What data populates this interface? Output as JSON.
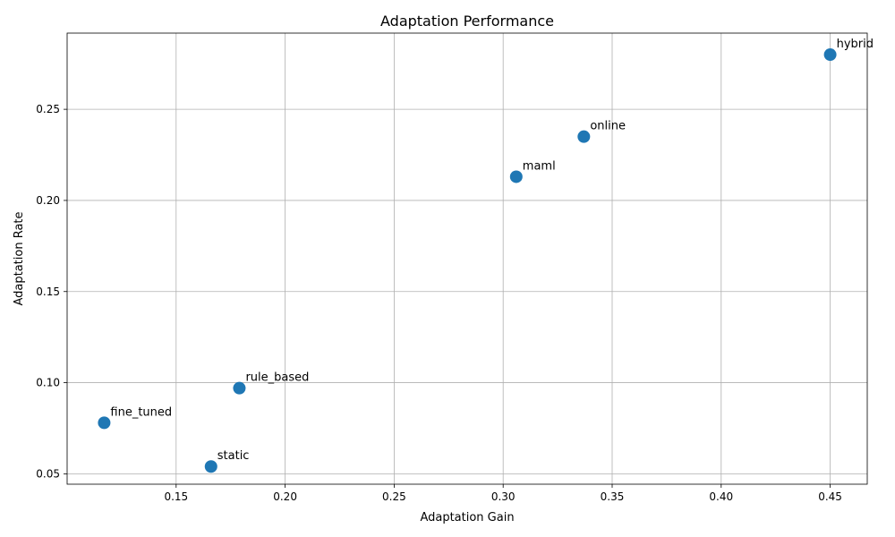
{
  "chart_data": {
    "type": "scatter",
    "title": "Adaptation Performance",
    "xlabel": "Adaptation Gain",
    "ylabel": "Adaptation Rate",
    "xlim": [
      0.1,
      0.467
    ],
    "ylim": [
      0.0443,
      0.2918
    ],
    "xticks": [
      "0.15",
      "0.20",
      "0.25",
      "0.30",
      "0.35",
      "0.40",
      "0.45"
    ],
    "yticks": [
      "0.05",
      "0.10",
      "0.15",
      "0.20",
      "0.25"
    ],
    "grid": true,
    "marker_color": "#1f77b4",
    "points": [
      {
        "label": "hybrid",
        "x": 0.45,
        "y": 0.28
      },
      {
        "label": "online",
        "x": 0.337,
        "y": 0.235
      },
      {
        "label": "maml",
        "x": 0.306,
        "y": 0.213
      },
      {
        "label": "rule_based",
        "x": 0.179,
        "y": 0.097
      },
      {
        "label": "fine_tuned",
        "x": 0.117,
        "y": 0.078
      },
      {
        "label": "static",
        "x": 0.166,
        "y": 0.054
      }
    ]
  }
}
